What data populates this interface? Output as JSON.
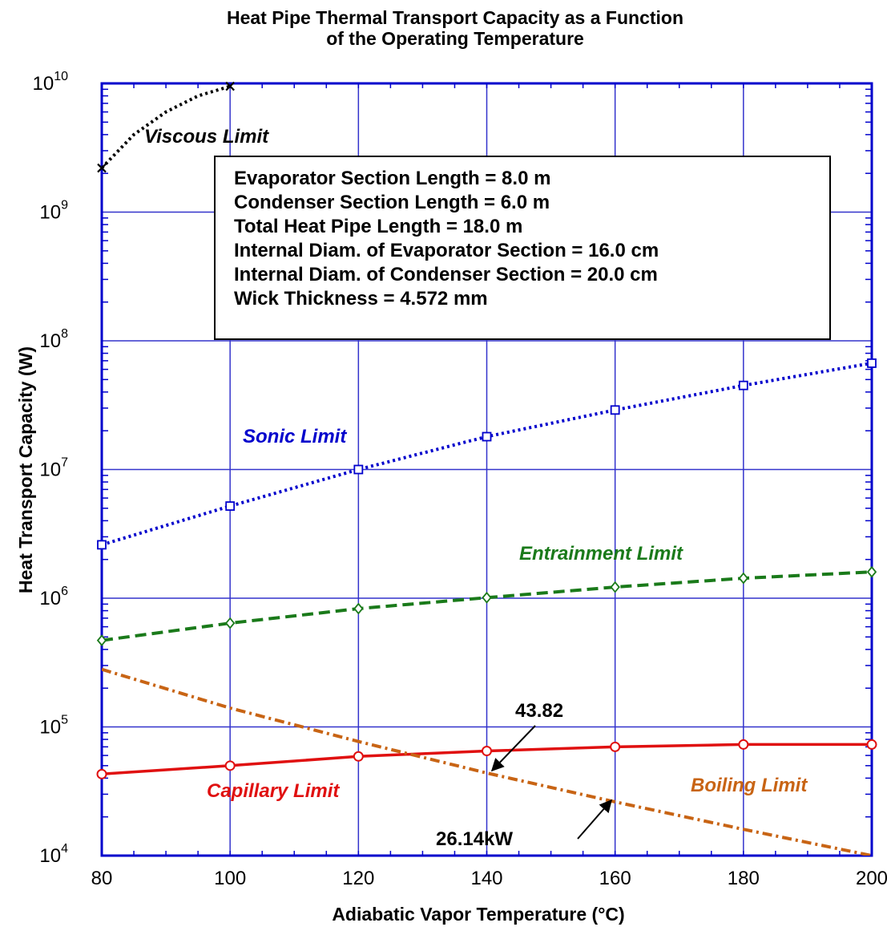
{
  "chart_data": {
    "type": "line",
    "title": [
      "Heat Pipe Thermal Transport Capacity as a Function",
      "of the Operating Temperature"
    ],
    "xlabel": "Adiabatic Vapor Temperature (°C)",
    "ylabel": "Heat Transport Capacity (W)",
    "xlim": [
      80,
      200
    ],
    "ylim": [
      10000,
      10000000000
    ],
    "yscale": "log",
    "grid": true,
    "x_ticks": [
      80,
      100,
      120,
      140,
      160,
      180,
      200
    ],
    "x_tick_labels": [
      "80",
      "100",
      "120",
      "140",
      "160",
      "180",
      "200"
    ],
    "y_ticks": [
      {
        "value": 10000,
        "base": "10",
        "exp": "4"
      },
      {
        "value": 100000,
        "base": "10",
        "exp": "5"
      },
      {
        "value": 1000000,
        "base": "10",
        "exp": "6"
      },
      {
        "value": 10000000,
        "base": "10",
        "exp": "7"
      },
      {
        "value": 100000000,
        "base": "10",
        "exp": "8"
      },
      {
        "value": 1000000000,
        "base": "10",
        "exp": "9"
      },
      {
        "value": 10000000000,
        "base": "10",
        "exp": "10"
      }
    ],
    "info_box": [
      "Evaporator Section Length = 8.0 m",
      "Condenser Section Length = 6.0 m",
      "Total Heat Pipe Length = 18.0 m",
      "Internal Diam. of Evaporator Section = 16.0 cm",
      "Internal Diam. of Condenser Section = 20.0 cm",
      "Wick Thickness = 4.572 mm"
    ],
    "series": [
      {
        "name": "Viscous Limit",
        "color": "#000000",
        "marker": "x",
        "line": "dotted",
        "x": [
          80,
          85,
          90,
          95,
          100
        ],
        "y": [
          2200000000,
          4000000000,
          6000000000,
          8000000000,
          9500000000
        ]
      },
      {
        "name": "Sonic Limit",
        "color": "#0000cc",
        "marker": "square",
        "line": "dotted",
        "x": [
          80,
          100,
          120,
          140,
          160,
          180,
          200
        ],
        "y": [
          2600000,
          5200000,
          10000000,
          18000000,
          29000000,
          45000000,
          67000000
        ]
      },
      {
        "name": "Entrainment Limit",
        "color": "#1a7a1a",
        "marker": "diamond",
        "line": "dashed",
        "x": [
          80,
          100,
          120,
          140,
          160,
          180,
          200
        ],
        "y": [
          470000,
          640000,
          830000,
          1010000,
          1220000,
          1430000,
          1600000
        ]
      },
      {
        "name": "Capillary Limit",
        "color": "#e01010",
        "marker": "circle",
        "line": "solid",
        "x": [
          80,
          100,
          120,
          140,
          160,
          180,
          200
        ],
        "y": [
          43000,
          50000,
          59000,
          65000,
          70000,
          73000,
          73000
        ]
      },
      {
        "name": "Boiling Limit",
        "color": "#c86414",
        "marker": "none",
        "line": "dashdot",
        "x": [
          80,
          100,
          120,
          140,
          160,
          180,
          200
        ],
        "y": [
          280000,
          140000,
          77000,
          43820,
          26140,
          16000,
          10000
        ]
      }
    ],
    "annotations": [
      {
        "text": "43.82",
        "x": 140,
        "y": 43820
      },
      {
        "text": "26.14kW",
        "x": 160,
        "y": 26140
      }
    ]
  }
}
